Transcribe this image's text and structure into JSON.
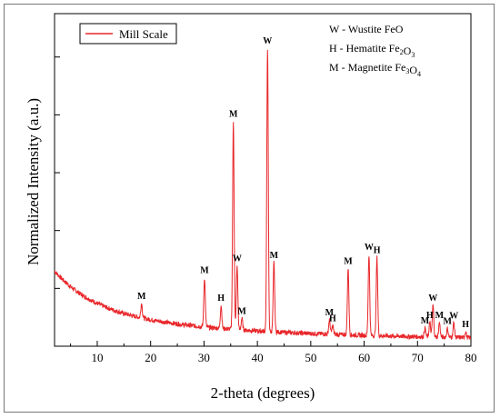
{
  "chart_data": {
    "type": "line",
    "xlabel": "2-theta (degrees)",
    "ylabel": "Normalized Intensity (a.u.)",
    "xlim": [
      2,
      80
    ],
    "ylim": [
      0,
      1.15
    ],
    "x_ticks": [
      10,
      20,
      30,
      40,
      50,
      60,
      70,
      80
    ],
    "legend": {
      "placement": "top-left",
      "entry": "Mill Scale",
      "color": "#e8262a"
    },
    "phase_key": [
      {
        "letter": "W",
        "sep": "-",
        "name": "Wustite",
        "formula_parts": [
          [
            "FeO",
            ""
          ]
        ]
      },
      {
        "letter": "H",
        "sep": "-",
        "name": "Hematite",
        "formula_parts": [
          [
            "Fe",
            "2"
          ],
          [
            "O",
            "3"
          ]
        ]
      },
      {
        "letter": "M",
        "sep": "-",
        "name": "Magnetite",
        "formula_parts": [
          [
            "Fe",
            "3"
          ],
          [
            "O",
            "4"
          ]
        ]
      }
    ],
    "series": [
      {
        "name": "Mill Scale",
        "color": "#e8262a",
        "background": {
          "a": 0.14,
          "b": 0.1,
          "k": 0.13,
          "end": 0.02
        },
        "peaks": [
          {
            "x": 18.3,
            "y": 0.05,
            "label": "M"
          },
          {
            "x": 30.1,
            "y": 0.17,
            "label": "M"
          },
          {
            "x": 33.2,
            "y": 0.08,
            "label": "H"
          },
          {
            "x": 35.5,
            "y": 0.72,
            "label": "M"
          },
          {
            "x": 36.2,
            "y": 0.22,
            "label": "W"
          },
          {
            "x": 37.1,
            "y": 0.04,
            "label": "M"
          },
          {
            "x": 41.9,
            "y": 0.98,
            "label": "W"
          },
          {
            "x": 43.1,
            "y": 0.24,
            "label": "M"
          },
          {
            "x": 53.5,
            "y": 0.05,
            "label": "M"
          },
          {
            "x": 54.1,
            "y": 0.03,
            "label": "H"
          },
          {
            "x": 57.0,
            "y": 0.23,
            "label": "M"
          },
          {
            "x": 60.9,
            "y": 0.28,
            "label": "W"
          },
          {
            "x": 62.4,
            "y": 0.27,
            "label": "H"
          },
          {
            "x": 71.4,
            "y": 0.03,
            "label": "M"
          },
          {
            "x": 72.3,
            "y": 0.05,
            "label": "H"
          },
          {
            "x": 72.9,
            "y": 0.11,
            "label": "W"
          },
          {
            "x": 74.1,
            "y": 0.05,
            "label": "M"
          },
          {
            "x": 75.6,
            "y": 0.03,
            "label": "M"
          },
          {
            "x": 76.8,
            "y": 0.05,
            "label": "W"
          },
          {
            "x": 79.0,
            "y": 0.02,
            "label": "H"
          }
        ]
      }
    ]
  }
}
